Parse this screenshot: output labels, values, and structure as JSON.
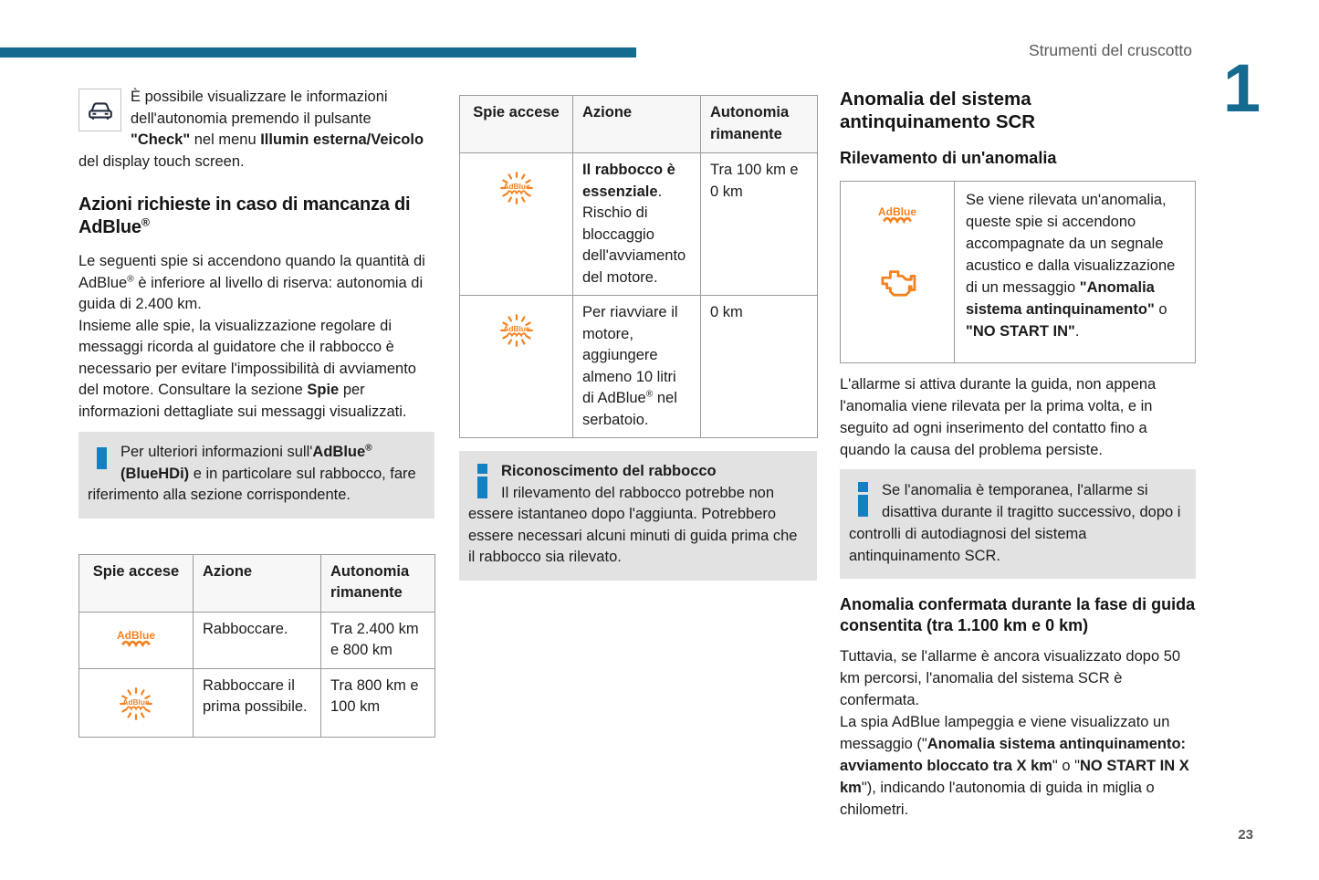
{
  "colors": {
    "accent": "#156a90",
    "warning": "#f5821f",
    "info": "#1480c4",
    "infobox_bg": "#e3e2e2",
    "border": "#9a9a9a",
    "text": "#1c1c1c",
    "muted": "#58585a"
  },
  "page": {
    "running_header": "Strumenti del cruscotto",
    "chapter_number": "1",
    "page_number": "23"
  },
  "icons": {
    "lead": "car-icon",
    "info": "info-icon",
    "adblue": "adblue-warning-icon",
    "adblue_flashing": "adblue-warning-flashing-icon",
    "engine": "engine-warning-icon"
  },
  "left": {
    "intro_segments": [
      {
        "t": "È possibile visualizzare le informazioni dell'autonomia premendo il pulsante "
      },
      {
        "t": "\"Check\"",
        "b": true
      },
      {
        "t": " nel menu "
      },
      {
        "t": "Illumin esterna/Veicolo",
        "b": true
      },
      {
        "t": " del display touch screen."
      }
    ],
    "section_title_segments": [
      {
        "t": "Azioni richieste in caso di mancanza di AdBlue"
      },
      {
        "t": "®",
        "sup": true
      }
    ],
    "para1_segments": [
      {
        "t": "Le seguenti spie si accendono quando la quantità di AdBlue"
      },
      {
        "t": "®",
        "sup": true
      },
      {
        "t": " è inferiore al livello di riserva: autonomia di guida di 2.400 km."
      }
    ],
    "para2_segments": [
      {
        "t": "Insieme alle spie, la visualizzazione regolare di messaggi ricorda al guidatore che il rabbocco è necessario per evitare l'impossibilità di avviamento del motore. Consultare la sezione "
      },
      {
        "t": "Spie",
        "b": true
      },
      {
        "t": " per informazioni dettagliate sui messaggi visualizzati."
      }
    ],
    "infobox_segments": [
      {
        "t": "Per ulteriori informazioni sull'"
      },
      {
        "t": "AdBlue",
        "b": true
      },
      {
        "t": "®",
        "b": true,
        "sup": true
      },
      {
        "t": " (BlueHDi)",
        "b": true
      },
      {
        "t": " e in particolare sul rabbocco, fare riferimento alla sezione corrispondente."
      }
    ],
    "table": {
      "headers": [
        "Spie accese",
        "Azione",
        "Autonomia rimanente"
      ],
      "rows": [
        {
          "icon": "adblue-warning-icon",
          "action_segments": [
            {
              "t": "Rabboccare."
            }
          ],
          "autonomy": "Tra 2.400 km e 800 km"
        },
        {
          "icon": "adblue-warning-flashing-icon",
          "action_segments": [
            {
              "t": "Rabboccare il prima possibile."
            }
          ],
          "autonomy": "Tra 800 km e 100 km"
        }
      ]
    }
  },
  "middle": {
    "table": {
      "headers": [
        "Spie accese",
        "Azione",
        "Autonomia rimanente"
      ],
      "rows": [
        {
          "icon": "adblue-warning-flashing-icon",
          "action_segments": [
            {
              "t": "Il rabbocco è essenziale",
              "b": true
            },
            {
              "t": ". Rischio di bloccaggio dell'avviamento del motore."
            }
          ],
          "autonomy": "Tra 100 km e 0 km"
        },
        {
          "icon": "adblue-warning-flashing-icon",
          "action_segments": [
            {
              "t": "Per riavviare il motore, aggiungere almeno 10 litri di AdBlue"
            },
            {
              "t": "®",
              "sup": true
            },
            {
              "t": " nel serbatoio."
            }
          ],
          "autonomy": "0 km"
        }
      ]
    },
    "infobox": {
      "title": "Riconoscimento del rabbocco",
      "body": "Il rilevamento del rabbocco potrebbe non essere istantaneo dopo l'aggiunta. Potrebbero essere necessari alcuni minuti di guida prima che il rabbocco sia rilevato."
    }
  },
  "right": {
    "title": "Anomalia del sistema antinquinamento SCR",
    "subtitle": "Rilevamento di un'anomalia",
    "alert_segments": [
      {
        "t": "Se viene rilevata un'anomalia, queste spie si accendono accompagnate da un segnale acustico e dalla visualizzazione di un messaggio "
      },
      {
        "t": "\"Anomalia sistema antinquinamento\"",
        "b": true
      },
      {
        "t": " o "
      },
      {
        "t": "\"NO START IN\"",
        "b": true
      },
      {
        "t": "."
      }
    ],
    "para1": "L'allarme si attiva durante la guida, non appena l'anomalia viene rilevata per la prima volta, e in seguito ad ogni inserimento del contatto fino a quando la causa del problema persiste.",
    "infobox_body": "Se l'anomalia è temporanea, l'allarme si disattiva durante il tragitto successivo, dopo i controlli di autodiagnosi del sistema antinquinamento SCR.",
    "subtitle2": "Anomalia confermata durante la fase di guida consentita (tra 1.100 km e 0 km)",
    "para2": "Tuttavia, se l'allarme è ancora visualizzato dopo 50 km percorsi, l'anomalia del sistema SCR è confermata.",
    "para3_segments": [
      {
        "t": "La spia AdBlue lampeggia e viene visualizzato un messaggio (\""
      },
      {
        "t": "Anomalia sistema antinquinamento: avviamento bloccato tra X km",
        "b": true
      },
      {
        "t": "\" o \""
      },
      {
        "t": "NO START IN X km",
        "b": true
      },
      {
        "t": "\"), indicando l'autonomia di guida in miglia o chilometri."
      }
    ]
  }
}
